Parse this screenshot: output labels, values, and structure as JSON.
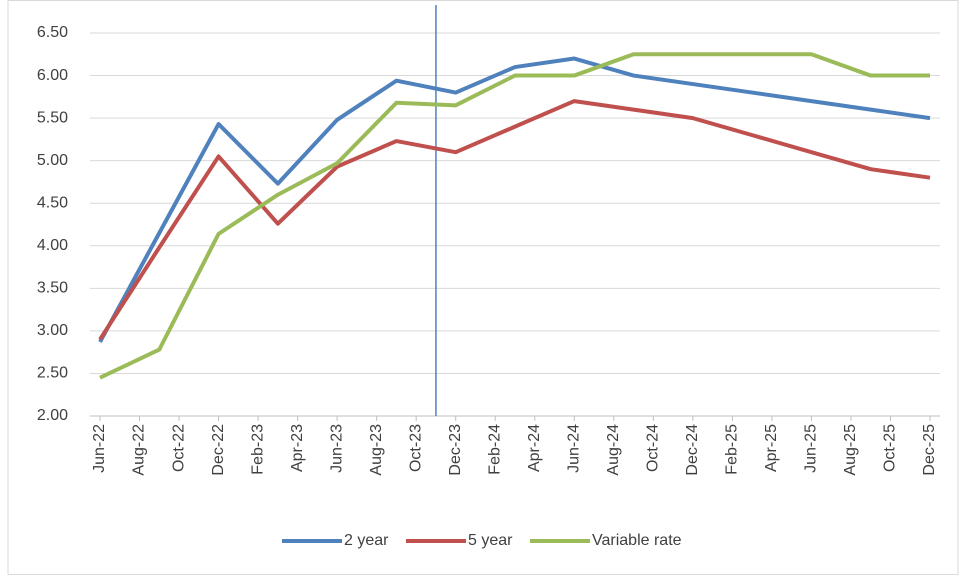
{
  "chart_data": {
    "type": "line",
    "x": [
      "Jun-22",
      "Sep-22",
      "Dec-22",
      "Mar-23",
      "Jun-23",
      "Sep-23",
      "Dec-23",
      "Mar-24",
      "Jun-24",
      "Sep-24",
      "Dec-24",
      "Mar-25",
      "Jun-25",
      "Sep-25",
      "Dec-25"
    ],
    "xticks": [
      "Jun-22",
      "Aug-22",
      "Oct-22",
      "Dec-22",
      "Feb-23",
      "Apr-23",
      "Jun-23",
      "Aug-23",
      "Oct-23",
      "Dec-23",
      "Feb-24",
      "Apr-24",
      "Jun-24",
      "Aug-24",
      "Oct-24",
      "Dec-24",
      "Feb-25",
      "Apr-25",
      "Jun-25",
      "Aug-25",
      "Oct-25",
      "Dec-25"
    ],
    "series": [
      {
        "name": "2 year",
        "color": "#4f81bd",
        "values": [
          2.87,
          4.15,
          5.43,
          4.73,
          5.48,
          5.94,
          5.8,
          6.1,
          6.2,
          6.0,
          5.9,
          5.8,
          5.7,
          5.6,
          5.5
        ]
      },
      {
        "name": "5 year",
        "color": "#c0504d",
        "values": [
          2.9,
          3.98,
          5.05,
          4.26,
          4.93,
          5.23,
          5.1,
          5.4,
          5.7,
          5.6,
          5.5,
          5.3,
          5.1,
          4.9,
          4.8
        ]
      },
      {
        "name": "Variable rate",
        "color": "#9bbb59",
        "values": [
          2.45,
          2.78,
          4.14,
          4.6,
          4.97,
          5.68,
          5.65,
          6.0,
          6.0,
          6.25,
          6.25,
          6.25,
          6.25,
          6.0,
          6.0
        ]
      }
    ],
    "ylim": [
      2,
      6.5
    ],
    "yticks": [
      {
        "value": 2,
        "label": "2.00"
      },
      {
        "value": 2.5,
        "label": "2.50"
      },
      {
        "value": 3,
        "label": "3.00"
      },
      {
        "value": 3.5,
        "label": "3.50"
      },
      {
        "value": 4,
        "label": "4.00"
      },
      {
        "value": 4.5,
        "label": "4.50"
      },
      {
        "value": 5,
        "label": "5.00"
      },
      {
        "value": 5.5,
        "label": "5.50"
      },
      {
        "value": 6,
        "label": "6.00"
      },
      {
        "value": 6.5,
        "label": "6.50"
      }
    ],
    "vline_x": "Nov-23",
    "grid": true,
    "legend": "bottom"
  }
}
